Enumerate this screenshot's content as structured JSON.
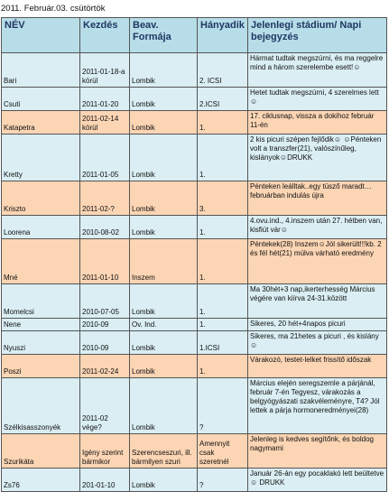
{
  "header_date": "2011. Február.03. csütörtök",
  "columns": [
    "NÉV",
    "Kezdés",
    "Beav. Formája",
    "Hányadik",
    "Jelenlegi stádium/ Napi bejegyzés"
  ],
  "rows": [
    {
      "name": "Bari",
      "start": "2011-01-18-a körül",
      "method": "Lombik",
      "count": "2. ICSI",
      "notes": "Hármat tudtak megszúrni, és ma reggelre mind a három szerelembe esett!☺",
      "color": "blue",
      "h": 38
    },
    {
      "name": "Csuti",
      "start": "2011-01-20",
      "method": "Lombik",
      "count": "2.ICSI",
      "notes": "Hetet tudtak megszúrni, 4 szerelmes lett☺",
      "color": "blue",
      "h": 26
    },
    {
      "name": "Katapetra",
      "start": "2011-02-14 körül",
      "method": "Lombik",
      "count": "1.",
      "notes": "17. ciklusnap, vissza a dokihoz február 11-én",
      "color": "orange",
      "h": 26
    },
    {
      "name": "Kretty",
      "start": "2011-01-05",
      "method": "Lombik",
      "count": "1.",
      "notes": "2 kis picuri szépen fejlődik☺ ☺Pénteken volt a transzfer(21), valószínűleg, kislányok☺DRUKK",
      "color": "blue",
      "h": 52
    },
    {
      "name": "Kriszto",
      "start": "2011-02-?",
      "method": "Lombik",
      "count": "3.",
      "notes": "Pénteken leálltak..egy tüsző maradt…februárban indulás újra",
      "color": "orange",
      "h": 38
    },
    {
      "name": "Loorena",
      "start": "2010-08-02",
      "method": "Lombik",
      "count": "1.",
      "notes": "4.ovu.ind., 4.inszem után 27. hétben van, kisfiút vár☺",
      "color": "blue",
      "h": 26
    },
    {
      "name": "Mné",
      "start": "2011-01-10",
      "method": "Inszem",
      "count": "1.",
      "notes": "Péntekek(28) Inszem☺Jól sikerült!!!kb. 2 és fél hét(21) múlva várható eredmény",
      "color": "orange",
      "h": 50
    },
    {
      "name": "Momelcsi",
      "start": "2010-07-05",
      "method": "Lombik",
      "count": "1.",
      "notes": "Ma 30hét+3 nap,ikerterhesség Március végére van kiírva 24-31.között",
      "color": "blue",
      "h": 38
    },
    {
      "name": "Nene",
      "start": "2010-09",
      "method": "Ov. Ind.",
      "count": "1.",
      "notes": "Sikeres, 20 hét+4napos picuri",
      "color": "blue",
      "h": 14
    },
    {
      "name": "Nyuszi",
      "start": "2010-09",
      "method": "Lombik",
      "count": "1.ICSI",
      "notes": "Sikeres, ma 21hetes a picuri , és kislány☺",
      "color": "blue",
      "h": 26
    },
    {
      "name": "Poszi",
      "start": "2011-02-24",
      "method": "Lombik",
      "count": "1.",
      "notes": "Várakozó, testet-lelket frissítő időszak",
      "color": "orange",
      "h": 26
    },
    {
      "name": "Szélkisasszonyék",
      "start": "2011-02 vége?",
      "method": "Lombik",
      "count": "?",
      "notes": "Március elején seregszemle a párjánál, február 7-én Tegyesz, várakozás a belgyógyászati szakvéleményre, T4? Jól lettek a párja hormoneredményei(28)",
      "color": "blue",
      "h": 62
    },
    {
      "name": "Szurikáta",
      "start": "Igény szerint bármikor",
      "method": "Szerencseszuri, ill. bármilyen szuri",
      "count": "Amennyit csak szeretnél",
      "notes": "Jelenleg is kedves segítőnk, és boldog nagymami",
      "color": "orange",
      "h": 38
    },
    {
      "name": "Zs76",
      "start": "201-01-10",
      "method": "Lombik",
      "count": "?",
      "notes": "Január 26-án egy pocaklakó lett beültetve☺ DRUKK",
      "color": "blue",
      "h": 26
    }
  ],
  "colors": {
    "header_bg": "#b7dde8",
    "header_text": "#1f3864",
    "row_blue": "#daeef3",
    "row_orange": "#fcd5b4",
    "border": "#555555"
  }
}
